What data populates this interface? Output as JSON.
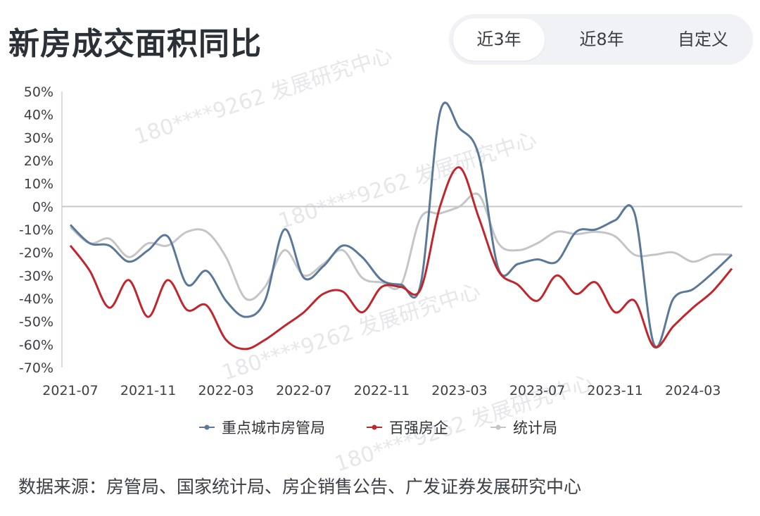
{
  "header": {
    "title": "新房成交面积同比",
    "tabs": [
      {
        "label": "近3年",
        "active": true
      },
      {
        "label": "近8年",
        "active": false
      },
      {
        "label": "自定义",
        "active": false
      }
    ]
  },
  "watermark": "180****9262 发展研究中心",
  "footer": {
    "source": "数据来源：房管局、国家统计局、房企销售公告、广发证券发展研究中心"
  },
  "chart_data": {
    "type": "line",
    "title": "新房成交面积同比",
    "xlabel": "",
    "ylabel": "",
    "ylim": [
      -70,
      50
    ],
    "yticks": [
      50,
      40,
      30,
      20,
      10,
      0,
      -10,
      -20,
      -30,
      -40,
      -50,
      -60,
      -70
    ],
    "ytick_labels": [
      "50%",
      "40%",
      "30%",
      "20%",
      "10%",
      "0%",
      "-10%",
      "-20%",
      "-30%",
      "-40%",
      "-50%",
      "-60%",
      "-70%"
    ],
    "x_tick_labels": [
      "2021-07",
      "2021-11",
      "2022-03",
      "2022-07",
      "2022-11",
      "2023-03",
      "2023-07",
      "2023-11",
      "2024-03"
    ],
    "x": [
      "2021-07",
      "2021-08",
      "2021-09",
      "2021-10",
      "2021-11",
      "2021-12",
      "2022-01",
      "2022-02",
      "2022-03",
      "2022-04",
      "2022-05",
      "2022-06",
      "2022-07",
      "2022-08",
      "2022-09",
      "2022-10",
      "2022-11",
      "2022-12",
      "2023-01",
      "2023-02",
      "2023-03",
      "2023-04",
      "2023-05",
      "2023-06",
      "2023-07",
      "2023-08",
      "2023-09",
      "2023-10",
      "2023-11",
      "2023-12",
      "2024-01",
      "2024-02",
      "2024-03",
      "2024-04",
      "2024-05"
    ],
    "grid": false,
    "zero_line": true,
    "legend_position": "bottom",
    "series": [
      {
        "name": "重点城市房管局",
        "color": "#5b7899",
        "values": [
          -8,
          -16,
          -17,
          -24,
          -19,
          -13,
          -34,
          -28,
          -41,
          -48,
          -41,
          -10,
          -31,
          -26,
          -17,
          -22,
          -32,
          -34,
          -34,
          41,
          34,
          22,
          -27,
          -25,
          -23,
          -24,
          -11,
          -10,
          -6,
          -3,
          -60,
          -40,
          -36,
          -29,
          -21
        ]
      },
      {
        "name": "百强房企",
        "color": "#c0262c",
        "values": [
          -17,
          -28,
          -44,
          -32,
          -48,
          -32,
          -45,
          -43,
          -58,
          -62,
          -58,
          -52,
          -46,
          -38,
          -37,
          -46,
          -35,
          -35,
          -36,
          0,
          17,
          -5,
          -28,
          -34,
          -41,
          -30,
          -38,
          -33,
          -46,
          -41,
          -61,
          -52,
          -44,
          -37,
          -27
        ]
      },
      {
        "name": "统计局",
        "color": "#c3c5c9",
        "values": [
          -9,
          -16,
          -14,
          -22,
          -16,
          -17,
          -11,
          -11,
          -22,
          -40,
          -35,
          -19,
          -30,
          -25,
          -19,
          -31,
          -33,
          -34,
          -5,
          -3,
          0,
          5,
          -16,
          -19,
          -16,
          -11,
          -12,
          -11,
          -13,
          -21,
          -21,
          -20,
          -24,
          -21,
          -21
        ]
      }
    ]
  }
}
